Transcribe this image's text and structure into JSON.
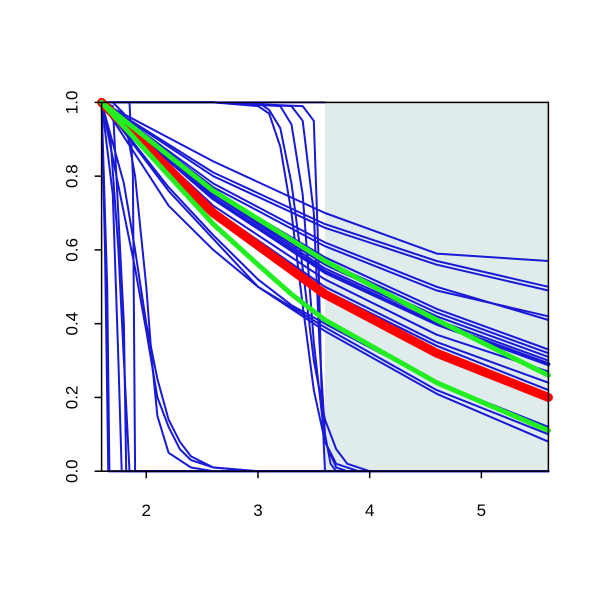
{
  "chart_data": {
    "type": "line",
    "title": "",
    "xlabel": "",
    "ylabel": "",
    "xlim": [
      1.6,
      5.6
    ],
    "ylim": [
      0.0,
      1.0
    ],
    "x_ticks": [
      2,
      3,
      4,
      5
    ],
    "y_ticks": [
      0.0,
      0.2,
      0.4,
      0.6,
      0.8,
      1.0
    ],
    "x_tick_labels": [
      "2",
      "3",
      "4",
      "5"
    ],
    "y_tick_labels": [
      "0.0",
      "0.2",
      "0.4",
      "0.6",
      "0.8",
      "1.0"
    ],
    "shaded_region": {
      "x_from": 3.6,
      "x_to": 5.6,
      "color": "#e0ecec"
    },
    "grid": false,
    "colors": {
      "blue": "#1a1ad6",
      "red": "#ff0000",
      "green": "#22ee22"
    },
    "series": [
      {
        "color": "#1a1ad6",
        "width": "thin",
        "points": [
          [
            1.6,
            1.0
          ],
          [
            2.6,
            0.84
          ],
          [
            3.6,
            0.7
          ],
          [
            4.6,
            0.59
          ],
          [
            5.6,
            0.57
          ]
        ]
      },
      {
        "color": "#1a1ad6",
        "width": "thin",
        "points": [
          [
            1.6,
            1.0
          ],
          [
            2.6,
            0.81
          ],
          [
            3.6,
            0.67
          ],
          [
            4.6,
            0.57
          ],
          [
            5.6,
            0.5
          ]
        ]
      },
      {
        "color": "#1a1ad6",
        "width": "thin",
        "points": [
          [
            1.6,
            1.0
          ],
          [
            2.6,
            0.8
          ],
          [
            3.6,
            0.66
          ],
          [
            4.6,
            0.56
          ],
          [
            5.6,
            0.49
          ]
        ]
      },
      {
        "color": "#1a1ad6",
        "width": "thin",
        "points": [
          [
            1.6,
            1.0
          ],
          [
            2.6,
            0.77
          ],
          [
            3.6,
            0.61
          ],
          [
            4.6,
            0.49
          ],
          [
            5.6,
            0.42
          ]
        ]
      },
      {
        "color": "#1a1ad6",
        "width": "thin",
        "points": [
          [
            1.6,
            1.0
          ],
          [
            2.6,
            0.78
          ],
          [
            3.6,
            0.62
          ],
          [
            4.6,
            0.5
          ],
          [
            5.6,
            0.41
          ]
        ]
      },
      {
        "color": "#1a1ad6",
        "width": "thin",
        "points": [
          [
            1.6,
            1.0
          ],
          [
            2.6,
            0.76
          ],
          [
            3.6,
            0.58
          ],
          [
            4.6,
            0.44
          ],
          [
            5.6,
            0.33
          ]
        ]
      },
      {
        "color": "#1a1ad6",
        "width": "thin",
        "points": [
          [
            1.6,
            1.0
          ],
          [
            2.6,
            0.76
          ],
          [
            3.6,
            0.57
          ],
          [
            4.6,
            0.43
          ],
          [
            5.6,
            0.32
          ]
        ]
      },
      {
        "color": "#1a1ad6",
        "width": "thin",
        "points": [
          [
            1.6,
            1.0
          ],
          [
            2.6,
            0.75
          ],
          [
            3.6,
            0.56
          ],
          [
            4.6,
            0.42
          ],
          [
            5.6,
            0.31
          ]
        ]
      },
      {
        "color": "#1a1ad6",
        "width": "thin",
        "points": [
          [
            1.6,
            1.0
          ],
          [
            2.6,
            0.75
          ],
          [
            3.6,
            0.55
          ],
          [
            4.6,
            0.41
          ],
          [
            5.6,
            0.3
          ]
        ]
      },
      {
        "color": "#1a1ad6",
        "width": "thick",
        "points": [
          [
            1.6,
            1.0
          ],
          [
            2.6,
            0.74
          ],
          [
            3.6,
            0.54
          ],
          [
            4.6,
            0.4
          ],
          [
            5.6,
            0.29
          ]
        ]
      },
      {
        "color": "#1a1ad6",
        "width": "thin",
        "points": [
          [
            1.6,
            1.0
          ],
          [
            2.6,
            0.72
          ],
          [
            3.6,
            0.52
          ],
          [
            4.6,
            0.37
          ],
          [
            5.6,
            0.27
          ]
        ]
      },
      {
        "color": "#1a1ad6",
        "width": "thin",
        "points": [
          [
            1.6,
            1.0
          ],
          [
            2.6,
            0.71
          ],
          [
            3.6,
            0.5
          ],
          [
            4.6,
            0.35
          ],
          [
            5.6,
            0.24
          ]
        ]
      },
      {
        "color": "#1a1ad6",
        "width": "thin",
        "points": [
          [
            1.6,
            1.0
          ],
          [
            2.6,
            0.7
          ],
          [
            3.6,
            0.49
          ],
          [
            4.6,
            0.34
          ],
          [
            5.6,
            0.22
          ]
        ]
      },
      {
        "color": "#1a1ad6",
        "width": "thin",
        "points": [
          [
            1.6,
            1.0
          ],
          [
            2.6,
            0.69
          ],
          [
            3.6,
            0.47
          ],
          [
            4.6,
            0.32
          ],
          [
            5.6,
            0.2
          ]
        ]
      },
      {
        "color": "#1a1ad6",
        "width": "thin",
        "points": [
          [
            1.6,
            1.0
          ],
          [
            2.2,
            0.77
          ],
          [
            2.6,
            0.64
          ],
          [
            3.0,
            0.52
          ],
          [
            3.3,
            0.45
          ],
          [
            3.6,
            0.4
          ],
          [
            4.6,
            0.24
          ],
          [
            5.6,
            0.12
          ]
        ]
      },
      {
        "color": "#1a1ad6",
        "width": "thin",
        "points": [
          [
            1.6,
            1.0
          ],
          [
            2.2,
            0.76
          ],
          [
            2.6,
            0.63
          ],
          [
            3.0,
            0.5
          ],
          [
            3.3,
            0.44
          ],
          [
            3.6,
            0.38
          ],
          [
            4.6,
            0.21
          ],
          [
            5.6,
            0.08
          ]
        ]
      },
      {
        "color": "#1a1ad6",
        "width": "thin",
        "points": [
          [
            1.6,
            1.0
          ],
          [
            2.2,
            0.72
          ],
          [
            2.6,
            0.6
          ],
          [
            3.0,
            0.5
          ],
          [
            3.6,
            0.39
          ],
          [
            4.6,
            0.22
          ],
          [
            5.6,
            0.1
          ]
        ]
      },
      {
        "color": "#1a1ad6",
        "width": "thin",
        "points": [
          [
            1.6,
            1.0
          ],
          [
            1.8,
            0.7
          ],
          [
            1.9,
            0.55
          ],
          [
            2.0,
            0.38
          ],
          [
            2.1,
            0.2
          ],
          [
            2.2,
            0.12
          ],
          [
            2.3,
            0.06
          ],
          [
            2.4,
            0.03
          ],
          [
            2.6,
            0.01
          ],
          [
            3.0,
            0.0
          ],
          [
            5.6,
            0.0
          ]
        ]
      },
      {
        "color": "#1a1ad6",
        "width": "thin",
        "points": [
          [
            1.6,
            1.0
          ],
          [
            1.8,
            0.78
          ],
          [
            1.9,
            0.6
          ],
          [
            2.0,
            0.4
          ],
          [
            2.1,
            0.25
          ],
          [
            2.2,
            0.14
          ],
          [
            2.3,
            0.08
          ],
          [
            2.4,
            0.04
          ],
          [
            2.6,
            0.01
          ],
          [
            3.0,
            0.0
          ],
          [
            5.6,
            0.0
          ]
        ]
      },
      {
        "color": "#1a1ad6",
        "width": "thin",
        "points": [
          [
            1.7,
            1.0
          ],
          [
            1.8,
            0.97
          ],
          [
            1.9,
            0.8
          ],
          [
            2.0,
            0.5
          ],
          [
            2.05,
            0.3
          ],
          [
            2.1,
            0.15
          ],
          [
            2.2,
            0.05
          ],
          [
            2.4,
            0.01
          ],
          [
            2.6,
            0.0
          ],
          [
            5.6,
            0.0
          ]
        ]
      },
      {
        "color": "#1a1ad6",
        "width": "thin",
        "points": [
          [
            1.6,
            1.0
          ],
          [
            1.65,
            0.5
          ],
          [
            1.67,
            0.0
          ],
          [
            5.6,
            0.0
          ]
        ]
      },
      {
        "color": "#1a1ad6",
        "width": "thin",
        "points": [
          [
            1.6,
            1.0
          ],
          [
            1.63,
            0.6
          ],
          [
            1.66,
            0.0
          ],
          [
            5.6,
            0.0
          ]
        ]
      },
      {
        "color": "#1a1ad6",
        "width": "thin",
        "points": [
          [
            1.6,
            1.0
          ],
          [
            1.7,
            0.75
          ],
          [
            1.75,
            0.3
          ],
          [
            1.78,
            0.0
          ],
          [
            5.6,
            0.0
          ]
        ]
      },
      {
        "color": "#1a1ad6",
        "width": "thin",
        "points": [
          [
            1.6,
            1.0
          ],
          [
            1.68,
            0.9
          ],
          [
            1.75,
            0.6
          ],
          [
            1.8,
            0.3
          ],
          [
            1.85,
            0.0
          ],
          [
            5.6,
            0.0
          ]
        ]
      },
      {
        "color": "#1a1ad6",
        "width": "thin",
        "points": [
          [
            1.6,
            1.0
          ],
          [
            1.7,
            0.99
          ],
          [
            1.8,
            0.4
          ],
          [
            1.82,
            0.0
          ],
          [
            5.6,
            0.0
          ]
        ]
      },
      {
        "color": "#1a1ad6",
        "width": "thin",
        "points": [
          [
            1.85,
            1.0
          ],
          [
            1.88,
            0.8
          ],
          [
            1.9,
            0.0
          ],
          [
            5.6,
            0.0
          ]
        ]
      },
      {
        "color": "#1a1ad6",
        "width": "thin",
        "points": [
          [
            1.6,
            1.0
          ],
          [
            2.6,
            1.0
          ],
          [
            3.0,
            0.99
          ],
          [
            3.1,
            0.97
          ],
          [
            3.2,
            0.88
          ],
          [
            3.3,
            0.7
          ],
          [
            3.4,
            0.45
          ],
          [
            3.5,
            0.22
          ],
          [
            3.6,
            0.08
          ],
          [
            3.7,
            0.02
          ],
          [
            3.9,
            0.0
          ],
          [
            5.6,
            0.0
          ]
        ]
      },
      {
        "color": "#1a1ad6",
        "width": "thin",
        "points": [
          [
            1.6,
            1.0
          ],
          [
            2.6,
            1.0
          ],
          [
            3.2,
            0.99
          ],
          [
            3.3,
            0.94
          ],
          [
            3.4,
            0.75
          ],
          [
            3.5,
            0.35
          ],
          [
            3.6,
            0.08
          ],
          [
            3.7,
            0.01
          ],
          [
            3.8,
            0.0
          ],
          [
            5.6,
            0.0
          ]
        ]
      },
      {
        "color": "#1a1ad6",
        "width": "thin",
        "points": [
          [
            1.6,
            1.0
          ],
          [
            2.6,
            1.0
          ],
          [
            3.3,
            0.99
          ],
          [
            3.4,
            0.95
          ],
          [
            3.5,
            0.7
          ],
          [
            3.55,
            0.35
          ],
          [
            3.6,
            0.1
          ],
          [
            3.65,
            0.02
          ],
          [
            3.7,
            0.0
          ],
          [
            5.6,
            0.0
          ]
        ]
      },
      {
        "color": "#1a1ad6",
        "width": "thin",
        "points": [
          [
            1.6,
            1.0
          ],
          [
            2.6,
            1.0
          ],
          [
            3.4,
            0.99
          ],
          [
            3.5,
            0.95
          ],
          [
            3.54,
            0.6
          ],
          [
            3.57,
            0.2
          ],
          [
            3.6,
            0.0
          ],
          [
            5.6,
            0.0
          ]
        ]
      },
      {
        "color": "#1a1ad6",
        "width": "thin",
        "points": [
          [
            1.6,
            1.0
          ],
          [
            2.6,
            1.0
          ],
          [
            3.0,
            1.0
          ],
          [
            3.1,
            0.98
          ],
          [
            3.2,
            0.93
          ],
          [
            3.3,
            0.78
          ],
          [
            3.4,
            0.55
          ],
          [
            3.5,
            0.3
          ],
          [
            3.6,
            0.14
          ],
          [
            3.7,
            0.06
          ],
          [
            3.8,
            0.02
          ],
          [
            4.0,
            0.0
          ],
          [
            5.6,
            0.0
          ]
        ]
      },
      {
        "color": "#1a1ad6",
        "width": "thin",
        "points": [
          [
            3.0,
            1.0
          ],
          [
            3.6,
            1.0
          ]
        ]
      },
      {
        "color": "#ff0000",
        "width": "heavy",
        "points": [
          [
            1.6,
            1.0
          ],
          [
            2.6,
            0.7
          ],
          [
            3.6,
            0.48
          ],
          [
            4.6,
            0.32
          ],
          [
            5.6,
            0.2
          ]
        ]
      },
      {
        "color": "#22ee22",
        "width": "medium",
        "points": [
          [
            1.6,
            1.0
          ],
          [
            2.6,
            0.76
          ],
          [
            3.6,
            0.57
          ],
          [
            4.6,
            0.41
          ],
          [
            5.6,
            0.26
          ]
        ]
      },
      {
        "color": "#22ee22",
        "width": "medium",
        "points": [
          [
            1.6,
            1.0
          ],
          [
            2.6,
            0.67
          ],
          [
            3.0,
            0.56
          ],
          [
            3.3,
            0.48
          ],
          [
            3.6,
            0.41
          ],
          [
            4.6,
            0.24
          ],
          [
            5.6,
            0.11
          ]
        ]
      }
    ]
  }
}
